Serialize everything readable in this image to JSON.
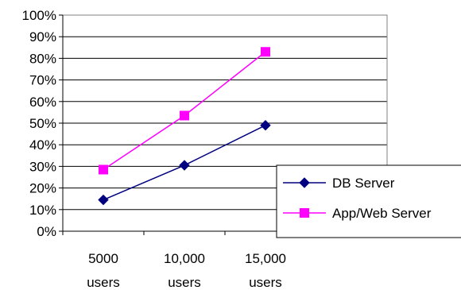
{
  "chart_data": {
    "type": "line",
    "title": "",
    "xlabel": "",
    "ylabel": "",
    "categories": [
      [
        "5000",
        "users"
      ],
      [
        "10,000",
        "users"
      ],
      [
        "15,000",
        "users"
      ]
    ],
    "y_ticks": [
      "0%",
      "10%",
      "20%",
      "30%",
      "40%",
      "50%",
      "60%",
      "70%",
      "80%",
      "90%",
      "100%"
    ],
    "ylim": [
      0,
      100
    ],
    "grid": true,
    "legend_position": "bottom-right",
    "series": [
      {
        "name": "DB Server",
        "values": [
          14.5,
          30.5,
          49
        ],
        "color": "#000080",
        "marker": "diamond"
      },
      {
        "name": "App/Web Server",
        "values": [
          28.5,
          53.5,
          83
        ],
        "color": "#ff00ff",
        "marker": "square"
      }
    ]
  }
}
